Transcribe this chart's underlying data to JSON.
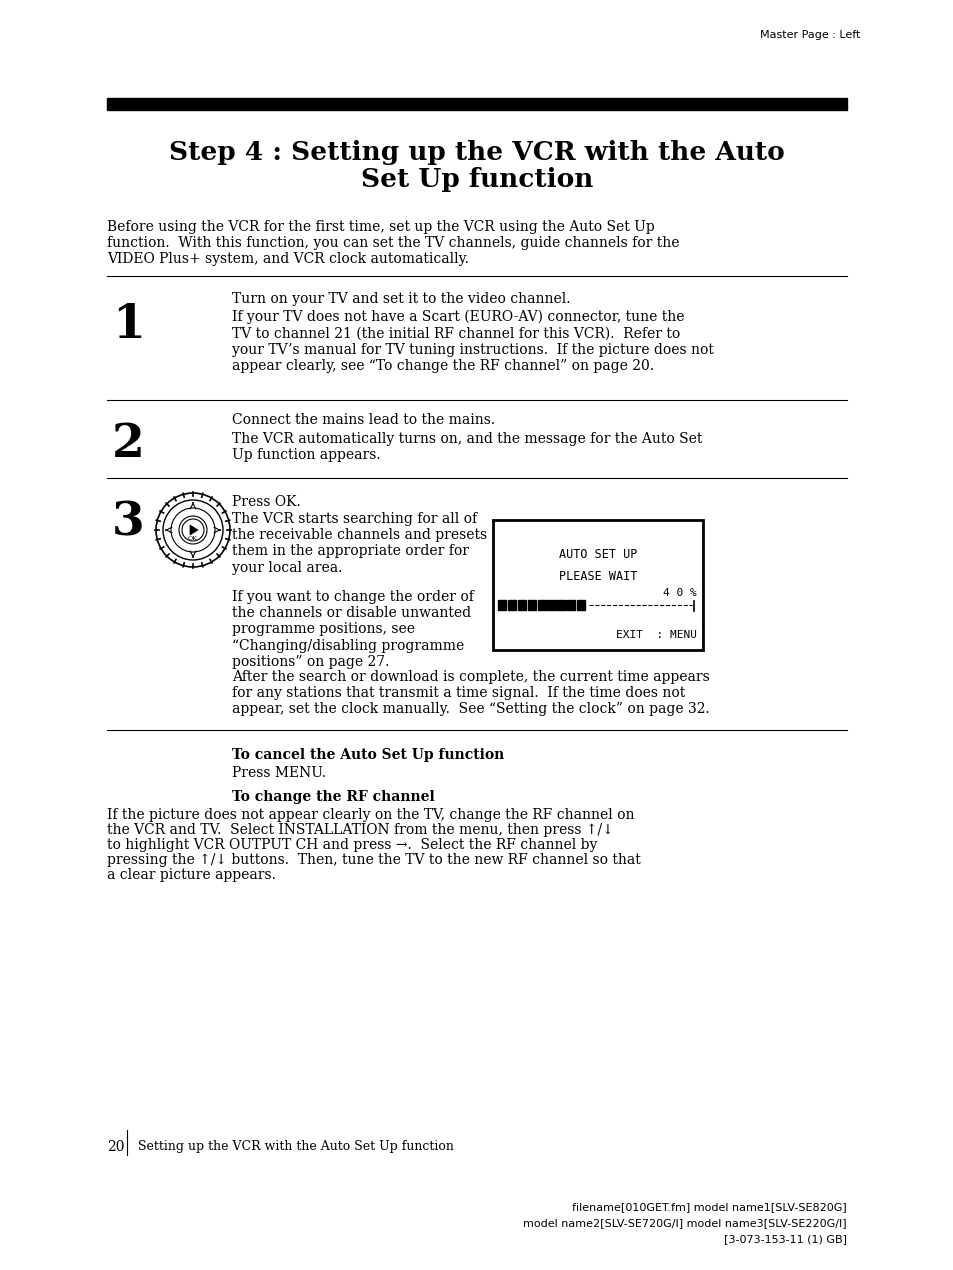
{
  "bg_color": "#ffffff",
  "header_text": "Master Page : Left",
  "title_line1": "Step 4 : Setting up the VCR with the Auto",
  "title_line2": "Set Up function",
  "intro_text": "Before using the VCR for the first time, set up the VCR using the Auto Set Up\nfunction.  With this function, you can set the TV channels, guide channels for the\nVIDEO Plus+ system, and VCR clock automatically.",
  "step1_num": "1",
  "step1_text1": "Turn on your TV and set it to the video channel.",
  "step1_text2": "If your TV does not have a Scart (EURO-AV) connector, tune the\nTV to channel 21 (the initial RF channel for this VCR).  Refer to\nyour TV’s manual for TV tuning instructions.  If the picture does not\nappear clearly, see “To change the RF channel” on page 20.",
  "step2_num": "2",
  "step2_text1": "Connect the mains lead to the mains.",
  "step2_text2": "The VCR automatically turns on, and the message for the Auto Set\nUp function appears.",
  "step3_num": "3",
  "step3_text1": "Press OK.",
  "step3_text2": "The VCR starts searching for all of\nthe receivable channels and presets\nthem in the appropriate order for\nyour local area.",
  "step3_text3": "If you want to change the order of\nthe channels or disable unwanted\nprogramme positions, see\n“Changing/disabling programme\npositions” on page 27.",
  "step3_text4": "After the search or download is complete, the current time appears\nfor any stations that transmit a time signal.  If the time does not\nappear, set the clock manually.  See “Setting the clock” on page 32.",
  "screen_line1": "AUTO SET UP",
  "screen_line2": "PLEASE WAIT",
  "screen_pct": "4 0 %",
  "screen_exit": "EXIT  : MENU",
  "cancel_heading": "To cancel the Auto Set Up function",
  "cancel_text": "Press MENU.",
  "rf_heading": "To change the RF channel",
  "rf_text1": "If the picture does not appear clearly on the TV, change the RF channel on",
  "rf_text2": "the VCR and TV.  Select INSTALLATION from the menu, then press ↑/↓",
  "rf_text3": "to highlight VCR OUTPUT CH and press →.  Select the RF channel by",
  "rf_text4": "pressing the ↑/↓ buttons.  Then, tune the TV to the new RF channel so that",
  "rf_text5": "a clear picture appears.",
  "footer_page": "20",
  "footer_text": "Setting up the VCR with the Auto Set Up function",
  "footer_line1": "filename[010GET.fm] model name1[SLV-SE820G]",
  "footer_line2": "model name2[SLV-SE720G/I] model name3[SLV-SE220G/I]",
  "footer_line3": "[3-073-153-11 (1) GB]"
}
